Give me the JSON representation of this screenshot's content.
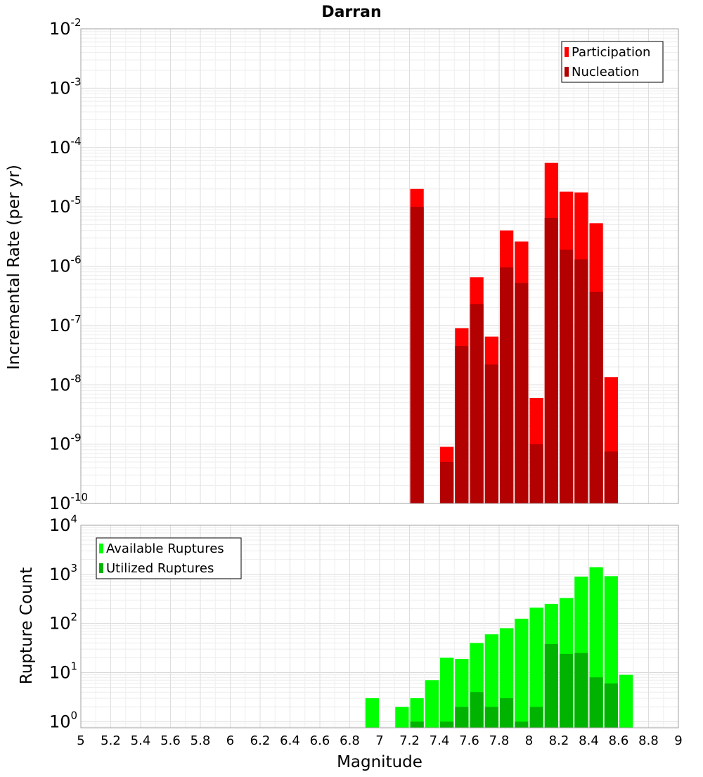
{
  "chart_data": [
    {
      "type": "bar",
      "title": "Darran",
      "xlabel": "",
      "ylabel": "Incremental Rate (per yr)",
      "yscale": "log",
      "ylim": [
        1e-10,
        0.01
      ],
      "xlim": [
        5,
        9
      ],
      "bin_width": 0.1,
      "grid": true,
      "legend_position": "top-right",
      "y_tick_labels": [
        {
          "base": "10",
          "exp": "-10"
        },
        {
          "base": "10",
          "exp": "-9"
        },
        {
          "base": "10",
          "exp": "-8"
        },
        {
          "base": "10",
          "exp": "-7"
        },
        {
          "base": "10",
          "exp": "-6"
        },
        {
          "base": "10",
          "exp": "-5"
        },
        {
          "base": "10",
          "exp": "-4"
        },
        {
          "base": "10",
          "exp": "-3"
        },
        {
          "base": "10",
          "exp": "-2"
        }
      ],
      "colors": {
        "Participation": "#ff0000",
        "Nucleation": "#b30000"
      },
      "series": [
        {
          "name": "Participation",
          "x": [
            7.25,
            7.45,
            7.55,
            7.65,
            7.75,
            7.85,
            7.95,
            8.05,
            8.15,
            8.25,
            8.35,
            8.45,
            8.55
          ],
          "values": [
            2e-05,
            9e-10,
            9e-08,
            6.5e-07,
            6.5e-08,
            4e-06,
            2.6e-06,
            6e-09,
            5.5e-05,
            1.8e-05,
            1.75e-05,
            5.3e-06,
            1.35e-08
          ]
        },
        {
          "name": "Nucleation",
          "x": [
            7.25,
            7.45,
            7.55,
            7.65,
            7.75,
            7.85,
            7.95,
            8.05,
            8.15,
            8.25,
            8.35,
            8.45,
            8.55
          ],
          "values": [
            1e-05,
            5e-10,
            4.5e-08,
            2.3e-07,
            2.2e-08,
            9.5e-07,
            5.2e-07,
            1e-09,
            6.5e-06,
            1.9e-06,
            1.3e-06,
            3.7e-07,
            7.5e-10
          ]
        }
      ]
    },
    {
      "type": "bar",
      "title": "",
      "xlabel": "Magnitude",
      "ylabel": "Rupture Count",
      "yscale": "log",
      "ylim": [
        0.75,
        10000
      ],
      "xlim": [
        5,
        9
      ],
      "bin_width": 0.1,
      "grid": true,
      "legend_position": "top-left",
      "y_tick_labels": [
        {
          "base": "10",
          "exp": "0"
        },
        {
          "base": "10",
          "exp": "1"
        },
        {
          "base": "10",
          "exp": "2"
        },
        {
          "base": "10",
          "exp": "3"
        },
        {
          "base": "10",
          "exp": "4"
        }
      ],
      "x_tick_labels": [
        "5",
        "5.2",
        "5.4",
        "5.6",
        "5.8",
        "6",
        "6.2",
        "6.4",
        "6.6",
        "6.8",
        "7",
        "7.2",
        "7.4",
        "7.6",
        "7.8",
        "8",
        "8.2",
        "8.4",
        "8.6",
        "8.8",
        "9"
      ],
      "colors": {
        "Available Ruptures": "#00ff00",
        "Utilized Ruptures": "#00b300"
      },
      "series": [
        {
          "name": "Available Ruptures",
          "x": [
            6.95,
            7.15,
            7.25,
            7.35,
            7.45,
            7.55,
            7.65,
            7.75,
            7.85,
            7.95,
            8.05,
            8.15,
            8.25,
            8.35,
            8.45,
            8.55,
            8.65
          ],
          "values": [
            3,
            2,
            3,
            7,
            20,
            19,
            40,
            60,
            80,
            125,
            210,
            250,
            330,
            900,
            1400,
            920,
            9
          ]
        },
        {
          "name": "Utilized Ruptures",
          "x": [
            7.25,
            7.45,
            7.55,
            7.65,
            7.75,
            7.85,
            7.95,
            8.05,
            8.15,
            8.25,
            8.35,
            8.45,
            8.55
          ],
          "values": [
            1,
            1,
            2,
            4,
            2,
            3,
            1,
            2,
            38,
            24,
            25,
            8,
            6
          ]
        }
      ]
    }
  ]
}
